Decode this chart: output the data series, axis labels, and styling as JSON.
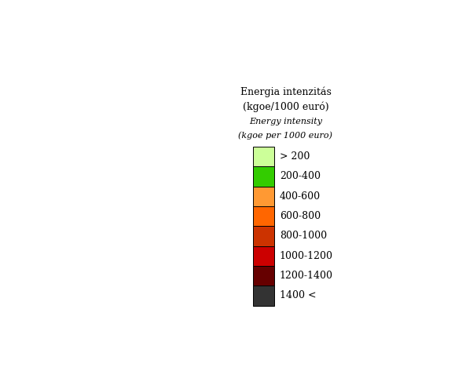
{
  "title_line1": "Energia intenzitás",
  "title_line2": "(kgoe/1000 euró)",
  "title_line3": "Energy intensity",
  "title_line4": "(kgoe per 1000 euro)",
  "legend_labels": [
    "> 200",
    "200-400",
    "400-600",
    "600-800",
    "800-1000",
    "1000-1200",
    "1200-1400",
    "1400 <"
  ],
  "legend_colors": [
    "#ccff99",
    "#33cc00",
    "#ff9933",
    "#ff6600",
    "#cc3300",
    "#cc0000",
    "#660000",
    "#333333"
  ],
  "country_colors": {
    "Norway": "#ccff99",
    "Sweden": "#33cc00",
    "Finland": "#33cc00",
    "Denmark": "#33cc00",
    "Estonia": "#cc3300",
    "Latvia": "#ff6600",
    "Lithuania": "#cc0000",
    "Poland": "#ff9933",
    "Czech Republic": "#cc3300",
    "Czechia": "#cc3300",
    "Slovakia": "#ff6600",
    "Hungary": "#ff6600",
    "Austria": "#ff9933",
    "Slovenia": "#ff9933",
    "Croatia": "#ff9933",
    "Romania": "#660000",
    "Bulgaria": "#333333",
    "Serbia": "#ffffff",
    "Bosnia and Herzegovina": "#ffffff",
    "Montenegro": "#ffffff",
    "North Macedonia": "#33cc00",
    "Albania": "#ffffff",
    "Greece": "#33cc00",
    "United Kingdom": "#33cc00",
    "Ireland": "#33cc00",
    "France": "#ccff99",
    "Belgium": "#ccff99",
    "Netherlands": "#ccff99",
    "Luxembourg": "#ccff99",
    "Germany": "#ccff99",
    "Switzerland": "#ccff99",
    "Liechtenstein": "#ccff99",
    "Italy": "#ccff99",
    "Spain": "#33cc00",
    "Portugal": "#ccff99",
    "Belarus": "#ffffff",
    "Ukraine": "#ffffff",
    "Moldova": "#ffffff",
    "Russia": "#ffffff",
    "Turkey": "#ffffff",
    "Kosovo": "#ffffff",
    "Iceland": "#ccff99"
  },
  "figsize": [
    6.02,
    4.87
  ],
  "dpi": 100,
  "map_xlim": [
    -11,
    35
  ],
  "map_ylim": [
    34,
    72
  ],
  "background_color": "#ffffff",
  "border_color": "#aaaaaa",
  "border_width": 0.4
}
